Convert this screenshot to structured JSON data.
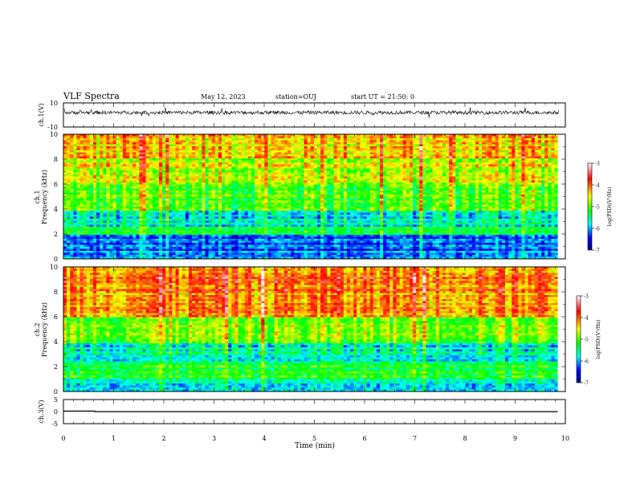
{
  "header": {
    "title": "VLF Spectra",
    "date": "May 12, 2023",
    "station": "station=OUJ",
    "start": "start UT = 21:50: 0"
  },
  "colorbar": {
    "label": "log(PSD)(V²/Hz)",
    "ticks": [
      "-3",
      "-4",
      "-5",
      "-6",
      "-7"
    ],
    "colors": [
      "#ffffff",
      "#ff0000",
      "#ffff00",
      "#00ff00",
      "#00ffff",
      "#0000ff",
      "#000080"
    ]
  },
  "chart_data": [
    {
      "type": "line",
      "panel": "ch1-waveform",
      "ylabel": "ch.1(V)",
      "ylim": [
        -10,
        10
      ],
      "ytick_labels": [
        "10",
        "-10"
      ],
      "xlim": [
        0,
        10
      ],
      "baseline_value": 2,
      "noise_amplitude": 1.5
    },
    {
      "type": "heatmap",
      "panel": "ch1-spectrogram",
      "ylabel": "ch.1",
      "ylabel2": "Frequency (kHz)",
      "ylim": [
        0,
        10
      ],
      "ytick_labels": [
        "10",
        "8",
        "6",
        "4",
        "2",
        "0"
      ],
      "xlim": [
        0,
        9.85
      ],
      "zlim": [
        -7,
        -3
      ],
      "band_levels_log_psd": [
        {
          "freq_khz": [
            0,
            0.6
          ],
          "value": -6.0
        },
        {
          "freq_khz": [
            0.6,
            2.0
          ],
          "value": -6.2
        },
        {
          "freq_khz": [
            2.0,
            2.6
          ],
          "value": -5.4
        },
        {
          "freq_khz": [
            2.6,
            3.8
          ],
          "value": -5.7
        },
        {
          "freq_khz": [
            3.8,
            6.0
          ],
          "value": -5.0
        },
        {
          "freq_khz": [
            6.0,
            8.0
          ],
          "value": -4.6
        },
        {
          "freq_khz": [
            8.0,
            10.0
          ],
          "value": -4.4
        }
      ]
    },
    {
      "type": "heatmap",
      "panel": "ch2-spectrogram",
      "ylabel": "ch.2",
      "ylabel2": "Frequency (kHz)",
      "ylim": [
        0,
        10
      ],
      "ytick_labels": [
        "10",
        "8",
        "6",
        "4",
        "2",
        "0"
      ],
      "xlim": [
        0,
        9.85
      ],
      "zlim": [
        -7,
        -3
      ],
      "band_levels_log_psd": [
        {
          "freq_khz": [
            0,
            1.0
          ],
          "value": -5.8
        },
        {
          "freq_khz": [
            1.0,
            2.2
          ],
          "value": -5.2
        },
        {
          "freq_khz": [
            2.2,
            3.8
          ],
          "value": -5.6
        },
        {
          "freq_khz": [
            3.8,
            6.0
          ],
          "value": -4.8
        },
        {
          "freq_khz": [
            6.0,
            8.0
          ],
          "value": -4.2
        },
        {
          "freq_khz": [
            8.0,
            10.0
          ],
          "value": -4.0
        }
      ]
    },
    {
      "type": "line",
      "panel": "ch3-waveform",
      "ylabel": "ch.3(V)",
      "ylim": [
        -5,
        5
      ],
      "ytick_labels": [
        "5",
        "0",
        "-5"
      ],
      "xlim": [
        0,
        10
      ],
      "x": [
        0,
        0.62,
        0.62,
        9.85
      ],
      "y": [
        0.2,
        0.2,
        0.0,
        0.0
      ],
      "xlabel": "Time (min)",
      "xtick_labels": [
        "0",
        "1",
        "2",
        "3",
        "4",
        "5",
        "6",
        "7",
        "8",
        "9",
        "10"
      ]
    }
  ]
}
